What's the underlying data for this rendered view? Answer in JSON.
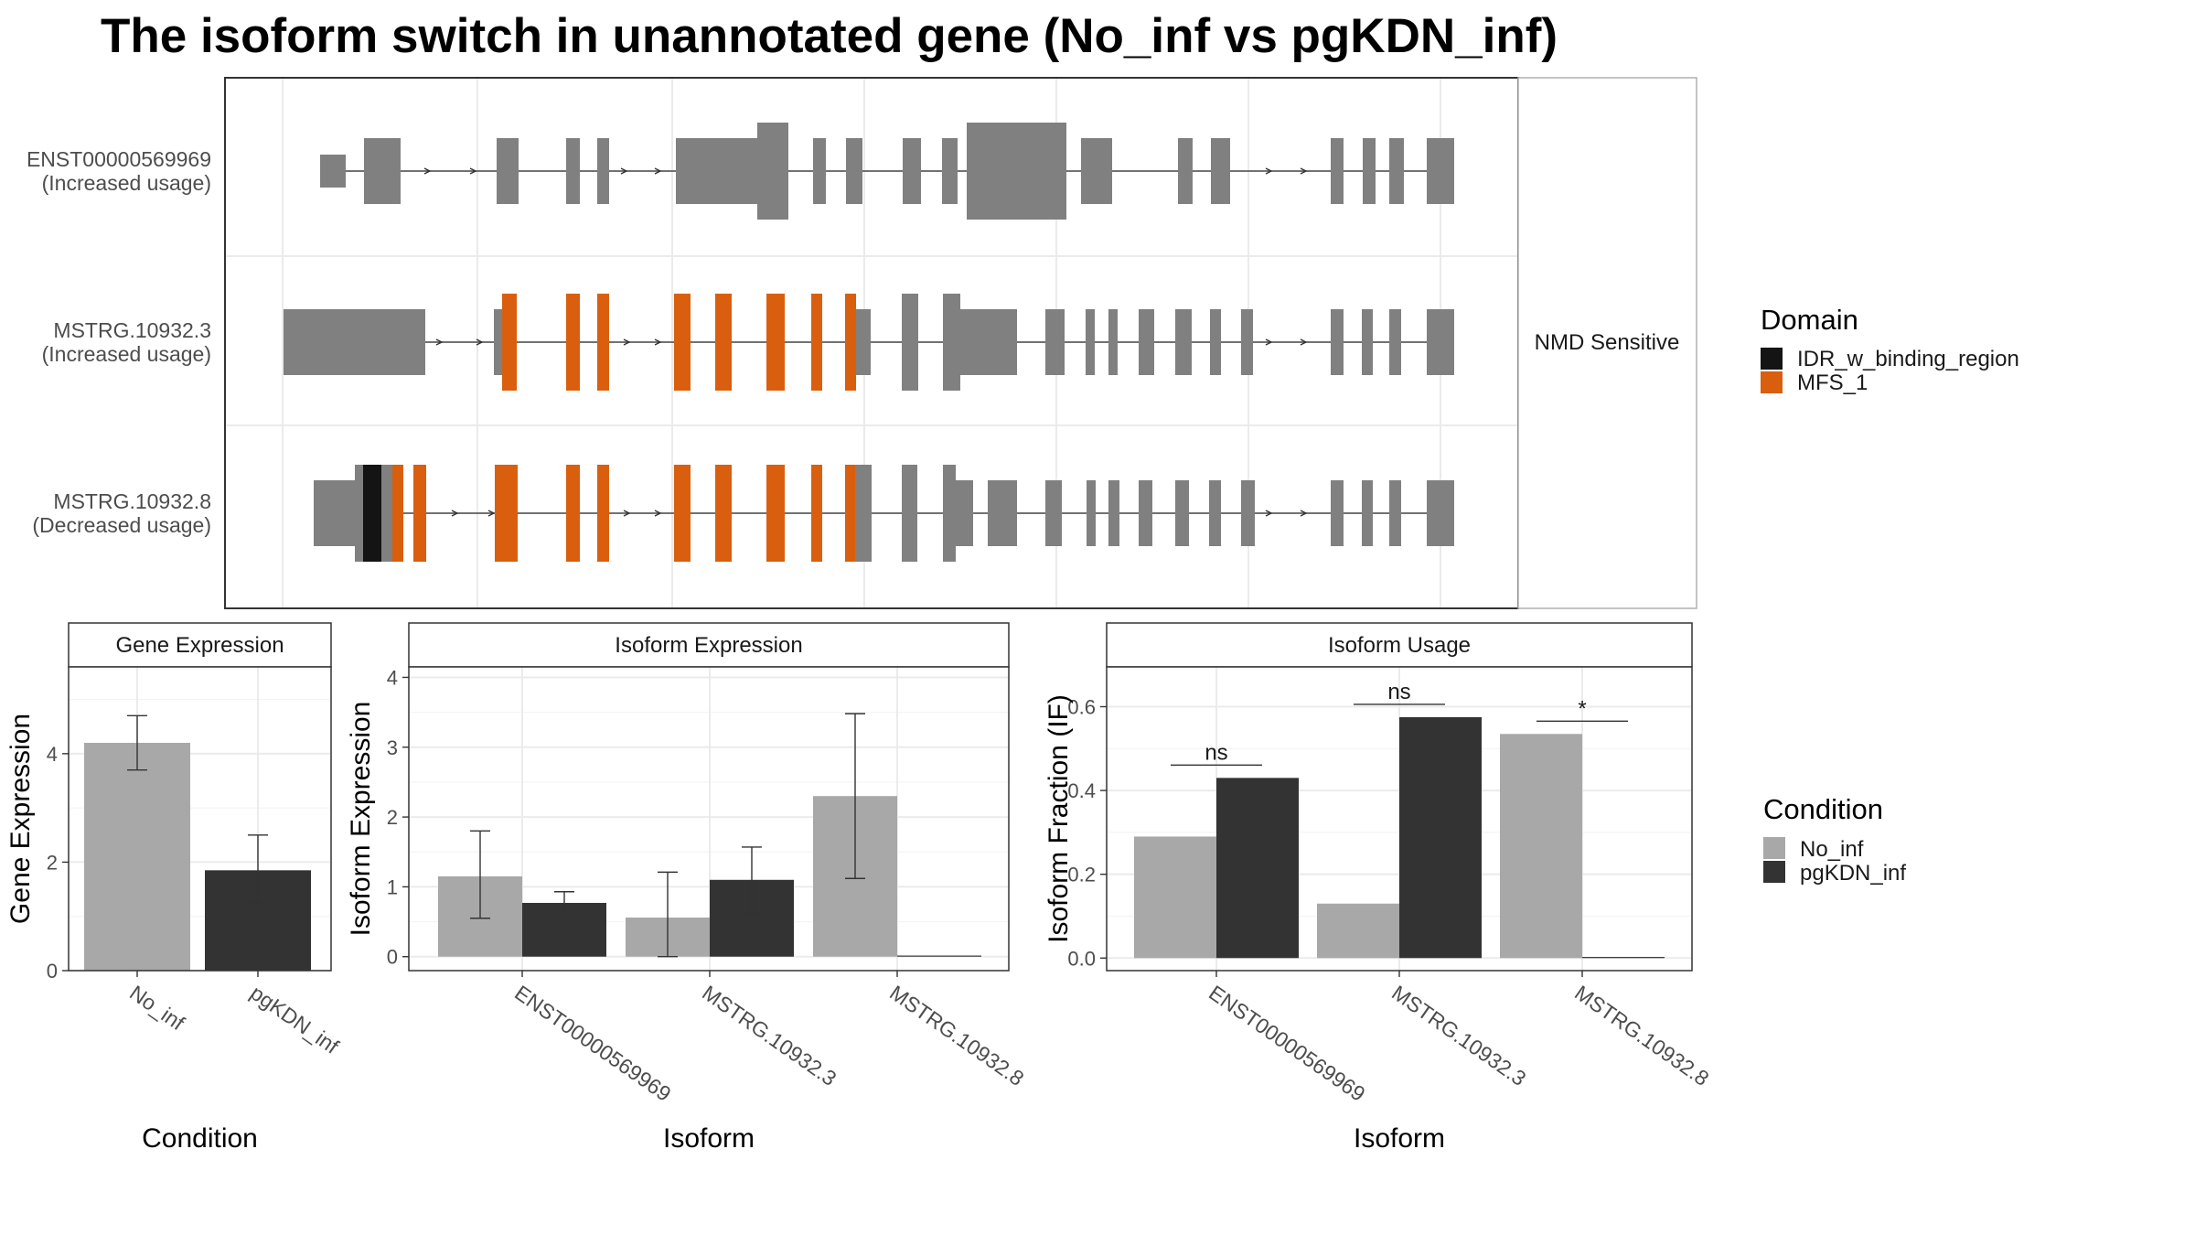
{
  "title": "The isoform switch in unannotated gene (No_inf vs pgKDN_inf)",
  "colors": {
    "exon": "#808080",
    "idr": "#141414",
    "mfs": "#d95f0e",
    "no_inf": "#a8a8a8",
    "pgkdn_inf": "#333333",
    "panel_border": "#333333",
    "grid": "#ebebeb"
  },
  "transcript_panel": {
    "side_label": "NMD Sensitive",
    "transcripts": [
      {
        "id": "ENST00000569969",
        "usage": "(Increased usage)"
      },
      {
        "id": "MSTRG.10932.3",
        "usage": "(Increased usage)"
      },
      {
        "id": "MSTRG.10932.8",
        "usage": "(Decreased usage)"
      }
    ]
  },
  "legends": {
    "domain": {
      "title": "Domain",
      "items": [
        {
          "label": "IDR_w_binding_region",
          "color": "#141414"
        },
        {
          "label": "MFS_1",
          "color": "#d95f0e"
        }
      ]
    },
    "condition": {
      "title": "Condition",
      "items": [
        {
          "label": "No_inf",
          "color": "#a8a8a8"
        },
        {
          "label": "pgKDN_inf",
          "color": "#333333"
        }
      ]
    }
  },
  "chart_data": [
    {
      "type": "bar",
      "title": "Gene Expression",
      "xlabel": "Condition",
      "ylabel": "Gene Expression",
      "categories": [
        "No_inf",
        "pgKDN_inf"
      ],
      "values": [
        4.2,
        1.85
      ],
      "error_low": [
        3.7,
        1.25
      ],
      "error_high": [
        4.7,
        2.5
      ],
      "yticks": [
        "0",
        "2",
        "4"
      ],
      "ylim": [
        0,
        5.6
      ]
    },
    {
      "type": "bar",
      "title": "Isoform Expression",
      "xlabel": "Isoform",
      "ylabel": "Isoform Expression",
      "categories": [
        "ENST00000569969",
        "MSTRG.10932.3",
        "MSTRG.10932.8"
      ],
      "series": [
        {
          "name": "No_inf",
          "values": [
            1.15,
            0.56,
            2.3
          ],
          "error_low": [
            0.55,
            0.0,
            1.12
          ],
          "error_high": [
            1.8,
            1.21,
            3.48
          ]
        },
        {
          "name": "pgKDN_inf",
          "values": [
            0.77,
            1.1,
            0.0
          ],
          "error_low": [
            0.63,
            0.62,
            0.0
          ],
          "error_high": [
            0.93,
            1.57,
            0.0
          ]
        }
      ],
      "yticks": [
        "0",
        "1",
        "2",
        "3",
        "4"
      ],
      "ylim": [
        -0.2,
        4.15
      ]
    },
    {
      "type": "bar",
      "title": "Isoform Usage",
      "xlabel": "Isoform",
      "ylabel": "Isoform Fraction (IF)",
      "categories": [
        "ENST00000569969",
        "MSTRG.10932.3",
        "MSTRG.10932.8"
      ],
      "series": [
        {
          "name": "No_inf",
          "values": [
            0.29,
            0.13,
            0.535
          ]
        },
        {
          "name": "pgKDN_inf",
          "values": [
            0.43,
            0.575,
            0.0
          ]
        }
      ],
      "annotations": [
        "ns",
        "ns",
        "*"
      ],
      "yticks": [
        "0.0",
        "0.2",
        "0.4",
        "0.6"
      ],
      "ylim": [
        -0.03,
        0.695
      ]
    }
  ]
}
